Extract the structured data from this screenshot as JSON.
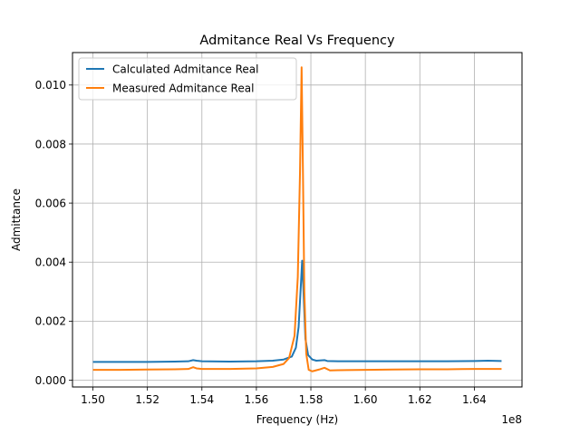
{
  "chart_data": {
    "type": "line",
    "title": "Admitance Real Vs Frequency",
    "xlabel": "Frequency (Hz)",
    "ylabel": "Admittance",
    "x_offset_label": "1e8",
    "xlim": [
      1.4925,
      1.6575
    ],
    "ylim": [
      -0.00023,
      0.0111
    ],
    "xticks": [
      1.5,
      1.52,
      1.54,
      1.56,
      1.58,
      1.6,
      1.62,
      1.64
    ],
    "xtick_labels": [
      "1.50",
      "1.52",
      "1.54",
      "1.56",
      "1.58",
      "1.60",
      "1.62",
      "1.64"
    ],
    "yticks": [
      0.0,
      0.002,
      0.004,
      0.006,
      0.008,
      0.01
    ],
    "ytick_labels": [
      "0.000",
      "0.002",
      "0.004",
      "0.006",
      "0.008",
      "0.010"
    ],
    "grid": true,
    "legend_position": "top-left",
    "series": [
      {
        "name": "Calculated Admitance Real",
        "color": "#1f77b4",
        "points": [
          [
            1.5,
            0.00062
          ],
          [
            1.51,
            0.00062
          ],
          [
            1.52,
            0.00062
          ],
          [
            1.53,
            0.00063
          ],
          [
            1.535,
            0.00064
          ],
          [
            1.5368,
            0.00068
          ],
          [
            1.538,
            0.00066
          ],
          [
            1.54,
            0.00064
          ],
          [
            1.55,
            0.00063
          ],
          [
            1.56,
            0.00064
          ],
          [
            1.566,
            0.00066
          ],
          [
            1.57,
            0.0007
          ],
          [
            1.573,
            0.0008
          ],
          [
            1.5745,
            0.0011
          ],
          [
            1.5755,
            0.0018
          ],
          [
            1.5762,
            0.003
          ],
          [
            1.5768,
            0.00405
          ],
          [
            1.5773,
            0.003
          ],
          [
            1.578,
            0.0014
          ],
          [
            1.579,
            0.00085
          ],
          [
            1.5805,
            0.0007
          ],
          [
            1.582,
            0.00066
          ],
          [
            1.585,
            0.00068
          ],
          [
            1.586,
            0.00065
          ],
          [
            1.59,
            0.00064
          ],
          [
            1.6,
            0.00064
          ],
          [
            1.61,
            0.00064
          ],
          [
            1.62,
            0.00064
          ],
          [
            1.63,
            0.00064
          ],
          [
            1.64,
            0.00065
          ],
          [
            1.645,
            0.00066
          ],
          [
            1.65,
            0.00065
          ]
        ]
      },
      {
        "name": "Measured Admitance Real",
        "color": "#ff7f0e",
        "points": [
          [
            1.5,
            0.00035
          ],
          [
            1.51,
            0.00035
          ],
          [
            1.52,
            0.00036
          ],
          [
            1.53,
            0.00037
          ],
          [
            1.535,
            0.00038
          ],
          [
            1.5368,
            0.00044
          ],
          [
            1.538,
            0.0004
          ],
          [
            1.54,
            0.00038
          ],
          [
            1.55,
            0.00038
          ],
          [
            1.56,
            0.0004
          ],
          [
            1.566,
            0.00045
          ],
          [
            1.57,
            0.00055
          ],
          [
            1.572,
            0.00075
          ],
          [
            1.574,
            0.0015
          ],
          [
            1.5752,
            0.0035
          ],
          [
            1.576,
            0.007
          ],
          [
            1.5766,
            0.0106
          ],
          [
            1.5771,
            0.007
          ],
          [
            1.5776,
            0.003
          ],
          [
            1.5783,
            0.0009
          ],
          [
            1.5792,
            0.00035
          ],
          [
            1.5805,
            0.0003
          ],
          [
            1.583,
            0.00036
          ],
          [
            1.585,
            0.00042
          ],
          [
            1.587,
            0.00033
          ],
          [
            1.59,
            0.00034
          ],
          [
            1.6,
            0.00035
          ],
          [
            1.61,
            0.00036
          ],
          [
            1.62,
            0.00037
          ],
          [
            1.63,
            0.00037
          ],
          [
            1.64,
            0.00038
          ],
          [
            1.65,
            0.00038
          ]
        ]
      }
    ]
  }
}
